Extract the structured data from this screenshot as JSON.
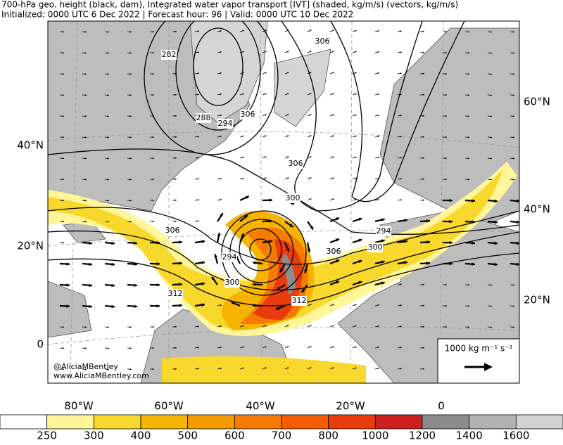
{
  "header": {
    "title": "700-hPa geo. height (black, dam), Integrated water vapor transport [IVT] (shaded, kg/m/s) (vectors, kg/m/s)",
    "subtitle": "Initialized: 0000 UTC 6 Dec 2022 | Forecast hour: 96 | Valid: 0000 UTC 10 Dec 2022"
  },
  "map": {
    "lat_labels_left": [
      "40°N",
      "20°N",
      "0"
    ],
    "lat_labels_right": [
      "60°N",
      "40°N",
      "20°N"
    ],
    "lon_labels": [
      "80°W",
      "60°W",
      "40°W",
      "20°W",
      "0"
    ],
    "contour_labels": [
      "282",
      "288",
      "294",
      "306",
      "306",
      "306",
      "300",
      "294",
      "300",
      "306",
      "306",
      "294",
      "300",
      "312",
      "312"
    ],
    "attribution": [
      "@AliciaMBentley",
      "www.AliciaMBentley.com"
    ],
    "reference_vector": "1000 kg m⁻¹ s⁻¹"
  },
  "colorbar": {
    "ticks": [
      250,
      300,
      400,
      500,
      600,
      700,
      800,
      1000,
      1200,
      1400,
      1600
    ],
    "colors": [
      "#ffffff",
      "#fff59a",
      "#f8d82c",
      "#f6b400",
      "#f59a00",
      "#f57c00",
      "#f35c00",
      "#e83c0c",
      "#cc2020",
      "#8c8c8c",
      "#b2b2b2",
      "#d2d2d2"
    ]
  }
}
